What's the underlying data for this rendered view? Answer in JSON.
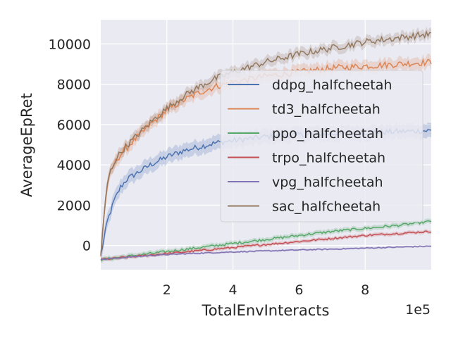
{
  "chart_data": {
    "type": "line",
    "title": "",
    "xlabel": "TotalEnvInteracts",
    "ylabel": "AverageEpRet",
    "x_scale_label": "1e5",
    "x_scale": 100000,
    "xlim": [
      0,
      1000000
    ],
    "ylim": [
      -1200,
      11200
    ],
    "x_ticks": [
      200000,
      400000,
      600000,
      800000
    ],
    "x_tick_labels": [
      "2",
      "4",
      "6",
      "8"
    ],
    "y_ticks": [
      0,
      2000,
      4000,
      6000,
      8000,
      10000
    ],
    "y_tick_labels": [
      "0",
      "2000",
      "4000",
      "6000",
      "8000",
      "10000"
    ],
    "grid": true,
    "legend_position": "upper-right",
    "series": [
      {
        "name": "ddpg_halfcheetah",
        "color": "#4c72b0",
        "x": [
          0,
          20000,
          40000,
          60000,
          80000,
          100000,
          150000,
          200000,
          250000,
          300000,
          350000,
          400000,
          500000,
          600000,
          700000,
          800000,
          900000,
          1000000
        ],
        "y": [
          -500,
          1200,
          2200,
          2900,
          3300,
          3500,
          4000,
          4400,
          4700,
          4900,
          5100,
          5200,
          5400,
          5500,
          5550,
          5600,
          5650,
          5700
        ]
      },
      {
        "name": "td3_halfcheetah",
        "color": "#dd8452",
        "x": [
          0,
          10000,
          20000,
          30000,
          40000,
          50000,
          75000,
          100000,
          150000,
          200000,
          250000,
          300000,
          350000,
          400000,
          500000,
          600000,
          700000,
          800000,
          900000,
          1000000
        ],
        "y": [
          -500,
          1500,
          3000,
          3600,
          4000,
          4300,
          4800,
          5200,
          6000,
          6700,
          7200,
          7600,
          7900,
          8100,
          8400,
          8600,
          8800,
          8900,
          9000,
          9100
        ]
      },
      {
        "name": "ppo_halfcheetah",
        "color": "#55a868",
        "x": [
          0,
          100000,
          200000,
          300000,
          400000,
          500000,
          600000,
          700000,
          800000,
          900000,
          1000000
        ],
        "y": [
          -700,
          -500,
          -300,
          -100,
          100,
          300,
          500,
          700,
          850,
          1000,
          1200
        ]
      },
      {
        "name": "trpo_halfcheetah",
        "color": "#c44e52",
        "x": [
          0,
          100000,
          200000,
          300000,
          400000,
          500000,
          600000,
          700000,
          800000,
          900000,
          1000000
        ],
        "y": [
          -700,
          -550,
          -400,
          -250,
          -100,
          50,
          200,
          350,
          500,
          600,
          700
        ]
      },
      {
        "name": "vpg_halfcheetah",
        "color": "#8172b3",
        "x": [
          0,
          100000,
          200000,
          300000,
          400000,
          500000,
          600000,
          700000,
          800000,
          900000,
          1000000
        ],
        "y": [
          -700,
          -550,
          -450,
          -380,
          -320,
          -270,
          -220,
          -180,
          -130,
          -80,
          -30
        ]
      },
      {
        "name": "sac_halfcheetah",
        "color": "#937860",
        "x": [
          0,
          10000,
          20000,
          30000,
          40000,
          50000,
          75000,
          100000,
          150000,
          200000,
          250000,
          300000,
          350000,
          400000,
          500000,
          600000,
          700000,
          800000,
          900000,
          1000000
        ],
        "y": [
          -500,
          1500,
          3100,
          3700,
          4100,
          4400,
          4900,
          5300,
          6100,
          6800,
          7400,
          7900,
          8300,
          8600,
          9100,
          9500,
          9800,
          10100,
          10300,
          10500
        ]
      }
    ]
  }
}
